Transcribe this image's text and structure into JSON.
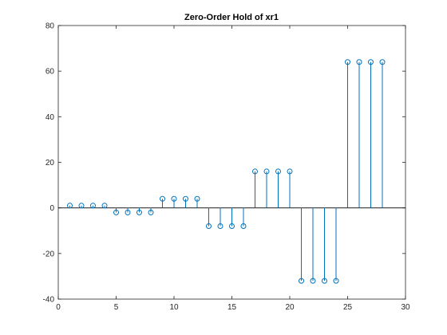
{
  "chart_data": {
    "type": "stem",
    "title": "Zero-Order Hold of xr1",
    "xlabel": "",
    "ylabel": "",
    "xlim": [
      0,
      30
    ],
    "ylim": [
      -40,
      80
    ],
    "xticks": [
      0,
      5,
      10,
      15,
      20,
      25,
      30
    ],
    "yticks": [
      -40,
      -20,
      0,
      20,
      40,
      60,
      80
    ],
    "grid": false,
    "baseline": 0,
    "marker": "circle",
    "color": "#0072BD",
    "x": [
      1,
      2,
      3,
      4,
      5,
      6,
      7,
      8,
      9,
      10,
      11,
      12,
      13,
      14,
      15,
      16,
      17,
      18,
      19,
      20,
      21,
      22,
      23,
      24,
      25,
      26,
      27,
      28
    ],
    "y": [
      1,
      1,
      1,
      1,
      -2,
      -2,
      -2,
      -2,
      4,
      4,
      4,
      4,
      -8,
      -8,
      -8,
      -8,
      16,
      16,
      16,
      16,
      -32,
      -32,
      -32,
      -32,
      64,
      64,
      64,
      64
    ]
  }
}
